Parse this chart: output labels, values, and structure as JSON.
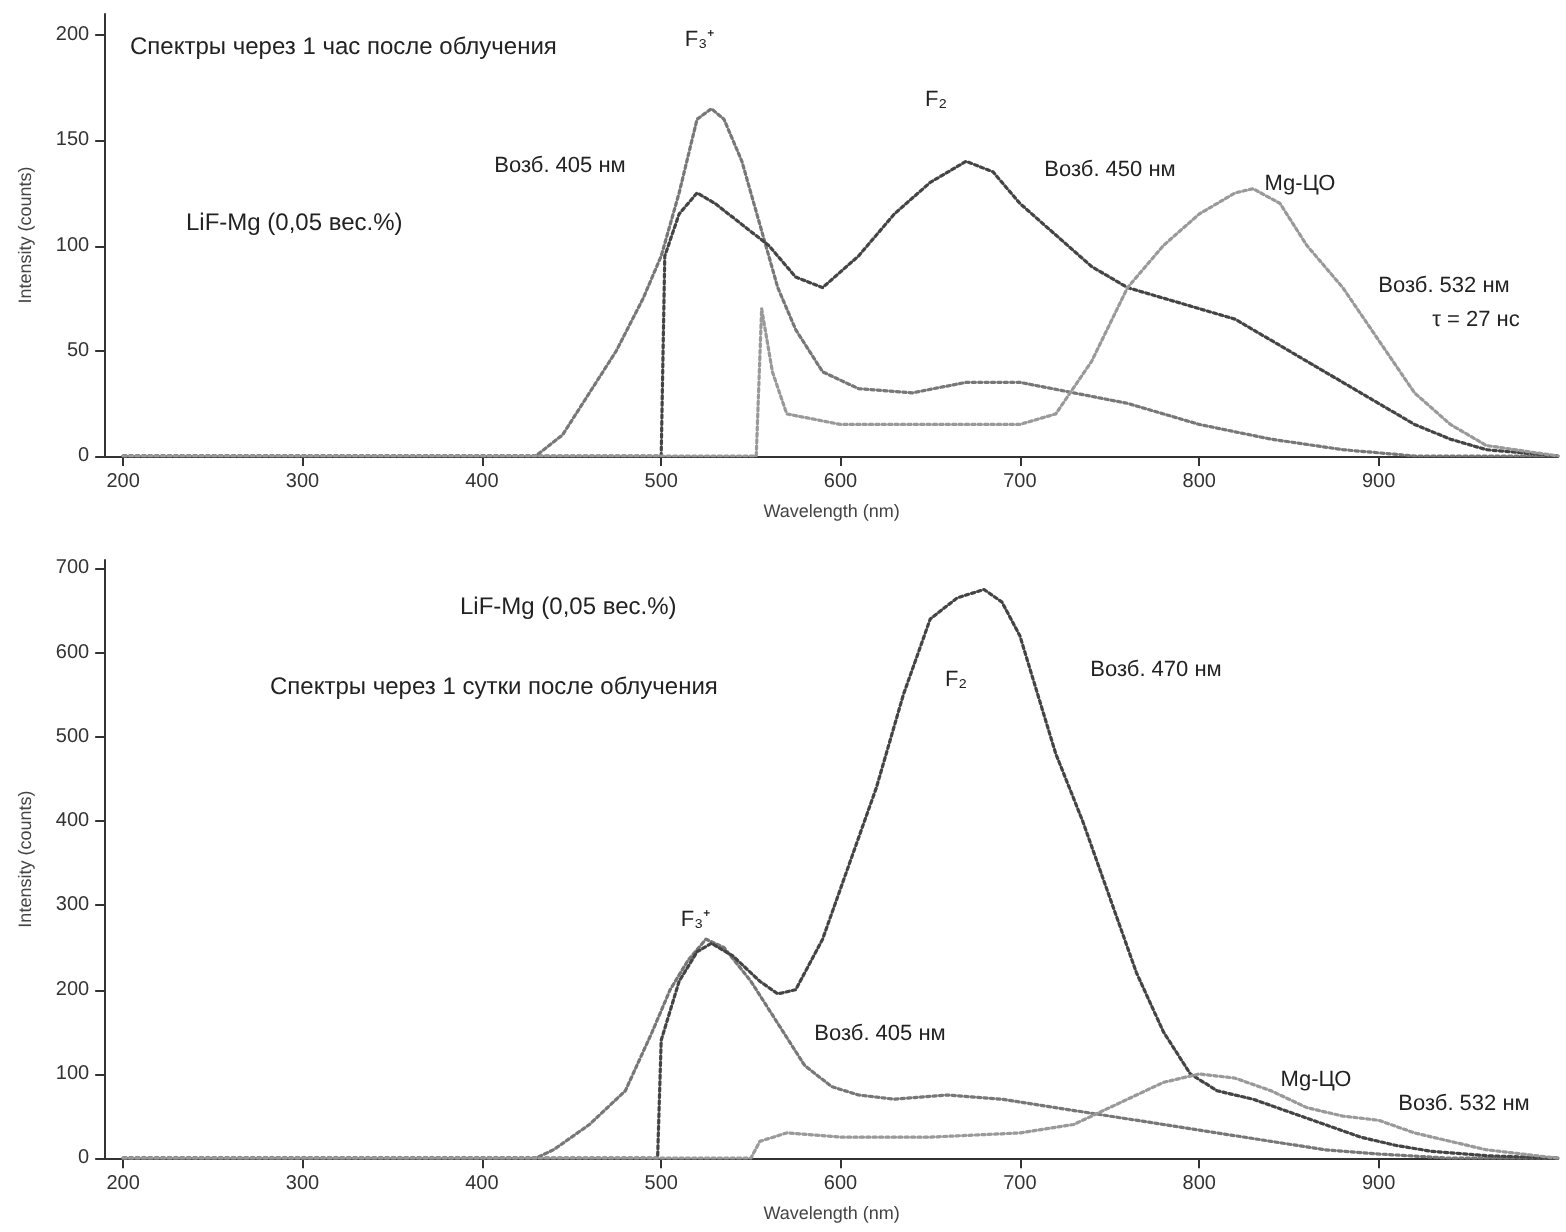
{
  "chart_data": [
    {
      "type": "line",
      "title": "Спектры через 1 час после облучения",
      "subtitle": "LiF-Mg (0,05 вес.%)",
      "xlabel": "Wavelength (nm)",
      "ylabel": "Intensity (counts)",
      "line_style": "dotted",
      "grid": false,
      "xlim": [
        190,
        1000
      ],
      "ylim": [
        0,
        210
      ],
      "xticks": [
        200,
        300,
        400,
        500,
        600,
        700,
        800,
        900
      ],
      "yticks": [
        0,
        50,
        100,
        150,
        200
      ],
      "series": [
        {
          "color": "#777777",
          "x": [
            200,
            300,
            400,
            430,
            445,
            460,
            475,
            490,
            500,
            510,
            520,
            528,
            535,
            545,
            555,
            565,
            575,
            590,
            610,
            640,
            670,
            700,
            730,
            760,
            800,
            840,
            880,
            920,
            1000
          ],
          "values": [
            0,
            0,
            0,
            0,
            10,
            30,
            50,
            75,
            95,
            125,
            160,
            165,
            160,
            140,
            110,
            80,
            60,
            40,
            32,
            30,
            35,
            35,
            30,
            25,
            15,
            8,
            3,
            0,
            0
          ]
        },
        {
          "color": "#444444",
          "x": [
            200,
            495,
            500,
            502,
            510,
            520,
            530,
            545,
            560,
            575,
            590,
            610,
            630,
            650,
            670,
            685,
            700,
            720,
            740,
            760,
            780,
            800,
            820,
            840,
            860,
            880,
            900,
            920,
            940,
            960,
            1000
          ],
          "values": [
            0,
            0,
            0,
            95,
            115,
            125,
            120,
            110,
            100,
            85,
            80,
            95,
            115,
            130,
            140,
            135,
            120,
            105,
            90,
            80,
            75,
            70,
            65,
            55,
            45,
            35,
            25,
            15,
            8,
            3,
            0
          ]
        },
        {
          "color": "#999999",
          "x": [
            200,
            550,
            553,
            556,
            562,
            570,
            600,
            650,
            700,
            720,
            740,
            760,
            780,
            800,
            820,
            830,
            845,
            860,
            880,
            900,
            920,
            940,
            960,
            1000
          ],
          "values": [
            0,
            0,
            0,
            70,
            40,
            20,
            15,
            15,
            15,
            20,
            45,
            80,
            100,
            115,
            125,
            127,
            120,
            100,
            80,
            55,
            30,
            15,
            5,
            0
          ]
        }
      ],
      "annotations": [
        "F₃⁺",
        "Возб. 405 нм",
        "F₂",
        "Возб. 450 нм",
        "Mg-ЦО",
        "Возб. 532 нм",
        "τ = 27 нс"
      ]
    },
    {
      "type": "line",
      "title": "Спектры через 1 сутки после облучения",
      "subtitle": "LiF-Mg (0,05 вес.%)",
      "xlabel": "Wavelength (nm)",
      "ylabel": "Intensity (counts)",
      "line_style": "dotted",
      "grid": false,
      "xlim": [
        190,
        1000
      ],
      "ylim": [
        0,
        710
      ],
      "xticks": [
        200,
        300,
        400,
        500,
        600,
        700,
        800,
        900
      ],
      "yticks": [
        0,
        100,
        200,
        300,
        400,
        500,
        600,
        700
      ],
      "series": [
        {
          "color": "#777777",
          "x": [
            200,
            430,
            440,
            460,
            480,
            495,
            505,
            515,
            525,
            535,
            550,
            565,
            580,
            595,
            610,
            630,
            660,
            690,
            720,
            750,
            780,
            810,
            840,
            870,
            900,
            940,
            1000
          ],
          "values": [
            0,
            0,
            10,
            40,
            80,
            150,
            200,
            235,
            260,
            250,
            210,
            160,
            110,
            85,
            75,
            70,
            75,
            70,
            60,
            50,
            40,
            30,
            20,
            10,
            5,
            0,
            0
          ]
        },
        {
          "color": "#444444",
          "x": [
            200,
            498,
            500,
            510,
            520,
            528,
            540,
            555,
            565,
            575,
            590,
            605,
            620,
            635,
            650,
            665,
            680,
            690,
            700,
            710,
            720,
            735,
            750,
            765,
            780,
            795,
            810,
            830,
            850,
            870,
            890,
            910,
            930,
            960,
            1000
          ],
          "values": [
            0,
            0,
            140,
            210,
            245,
            255,
            240,
            210,
            195,
            200,
            260,
            350,
            440,
            550,
            640,
            665,
            675,
            660,
            620,
            550,
            480,
            400,
            310,
            220,
            150,
            100,
            80,
            70,
            55,
            40,
            25,
            15,
            8,
            3,
            0
          ]
        },
        {
          "color": "#999999",
          "x": [
            200,
            550,
            555,
            570,
            600,
            650,
            700,
            730,
            760,
            780,
            800,
            820,
            840,
            860,
            880,
            900,
            920,
            940,
            960,
            980,
            1000
          ],
          "values": [
            0,
            0,
            20,
            30,
            25,
            25,
            30,
            40,
            70,
            90,
            100,
            95,
            80,
            60,
            50,
            45,
            30,
            20,
            10,
            5,
            0
          ]
        }
      ],
      "annotations": [
        "F₃⁺",
        "Возб. 405 нм",
        "F₂",
        "Возб. 470 нм",
        "Mg-ЦО",
        "Возб. 532 нм"
      ]
    }
  ]
}
